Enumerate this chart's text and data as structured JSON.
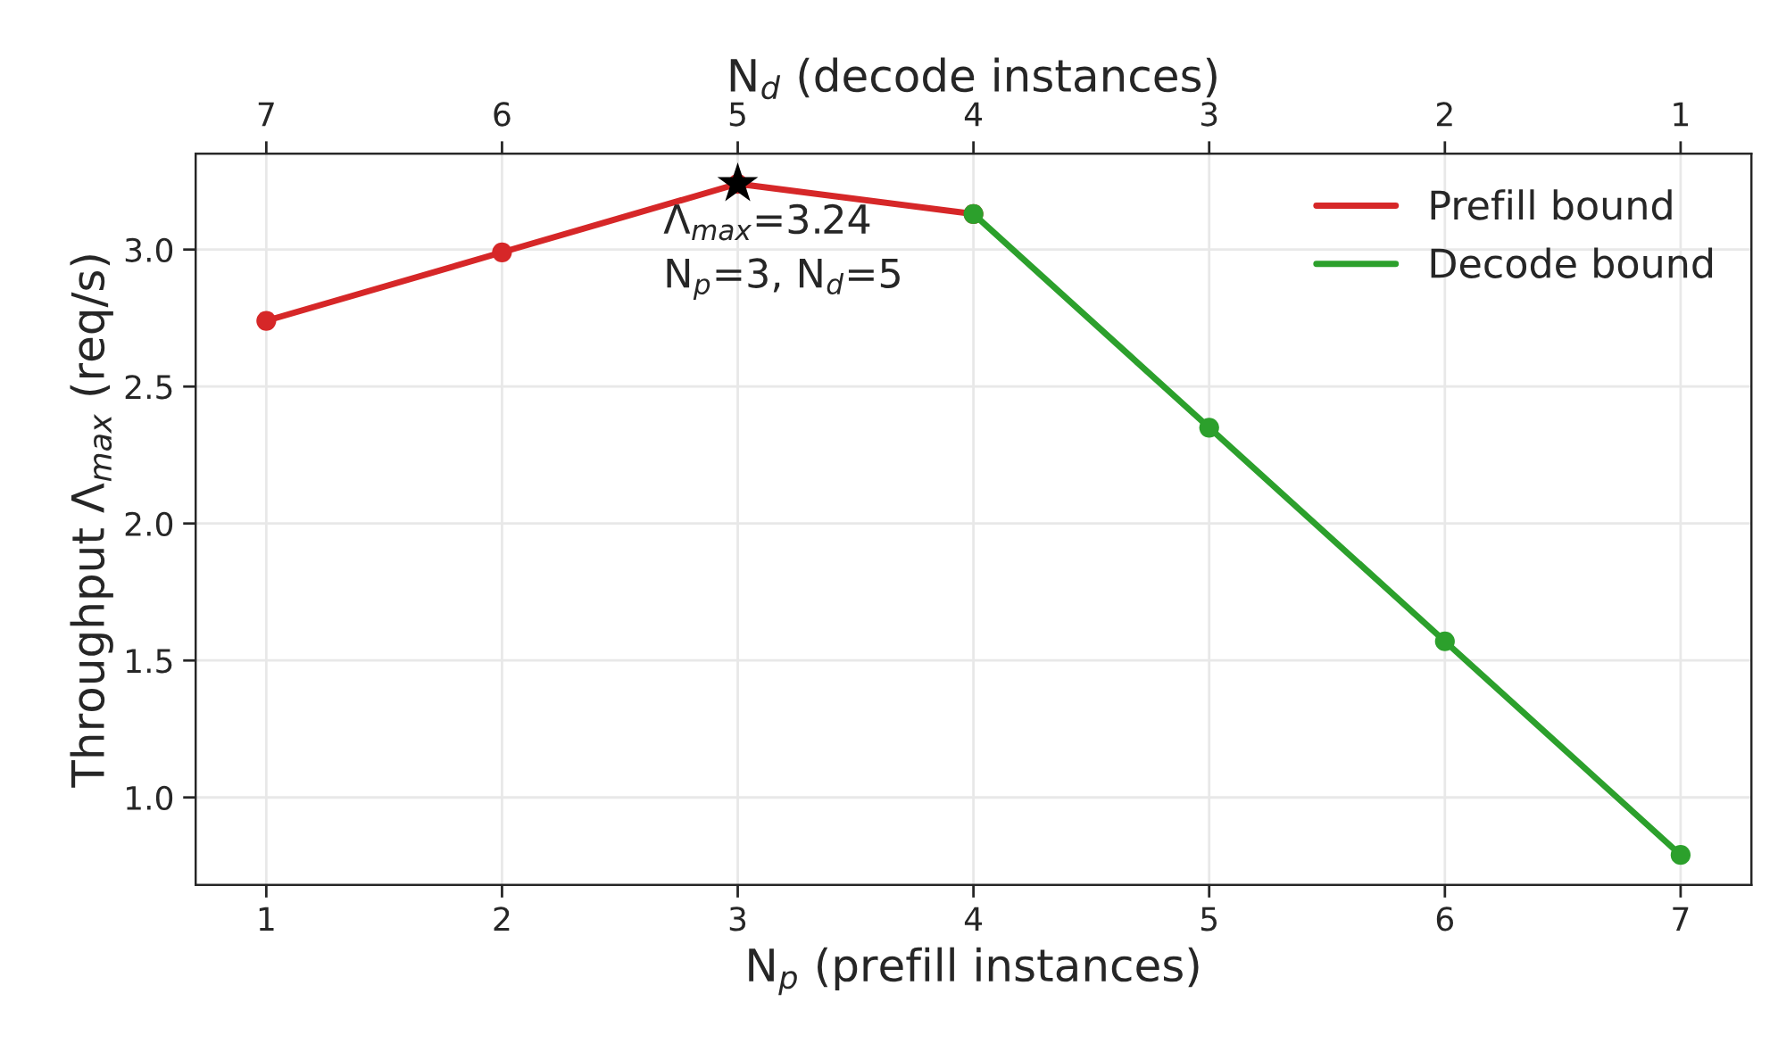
{
  "chart_data": {
    "type": "line",
    "xlabel": "N$_{p}$ (prefill instances)",
    "ylabel": "Throughput Λ$_{max}$ (req/s)",
    "x2label": "N$_{d}$ (decode instances)",
    "xlim": [
      0.7,
      7.3
    ],
    "xticks": [
      1,
      2,
      3,
      4,
      5,
      6,
      7
    ],
    "x2lim": [
      7.3,
      0.7
    ],
    "x2ticks": [
      7,
      6,
      5,
      4,
      3,
      2,
      1
    ],
    "ylim": [
      0.68,
      3.35
    ],
    "yticks": [
      {
        "value": 1,
        "label": "1.0"
      },
      1.5,
      {
        "value": 2,
        "label": "2.0"
      },
      2.5,
      {
        "value": 3,
        "label": "3.0"
      }
    ],
    "grid": true,
    "legend": "top right",
    "marker": "circle",
    "line_style": "solid",
    "series": [
      {
        "name": "Prefill bound",
        "color": "#d62728",
        "x": [
          1,
          2,
          3,
          4
        ],
        "values": [
          2.74,
          2.99,
          3.24,
          3.13
        ]
      },
      {
        "name": "Decode bound",
        "color": "#2ca02c",
        "x": [
          4,
          5,
          6,
          7
        ],
        "values": [
          3.13,
          2.35,
          1.57,
          0.79
        ]
      },
      {
        "type": "scatter",
        "color": "#000000",
        "marker": "star",
        "x": [
          3
        ],
        "values": [
          3.24
        ]
      }
    ],
    "annotations": [
      {
        "text": "Λ$_{max}$=3.24",
        "x": 3,
        "y": 3.24
      },
      {
        "text": "N$_{p}$=3, N$_{d}$=5",
        "x": 3,
        "y": 3.24
      }
    ]
  }
}
